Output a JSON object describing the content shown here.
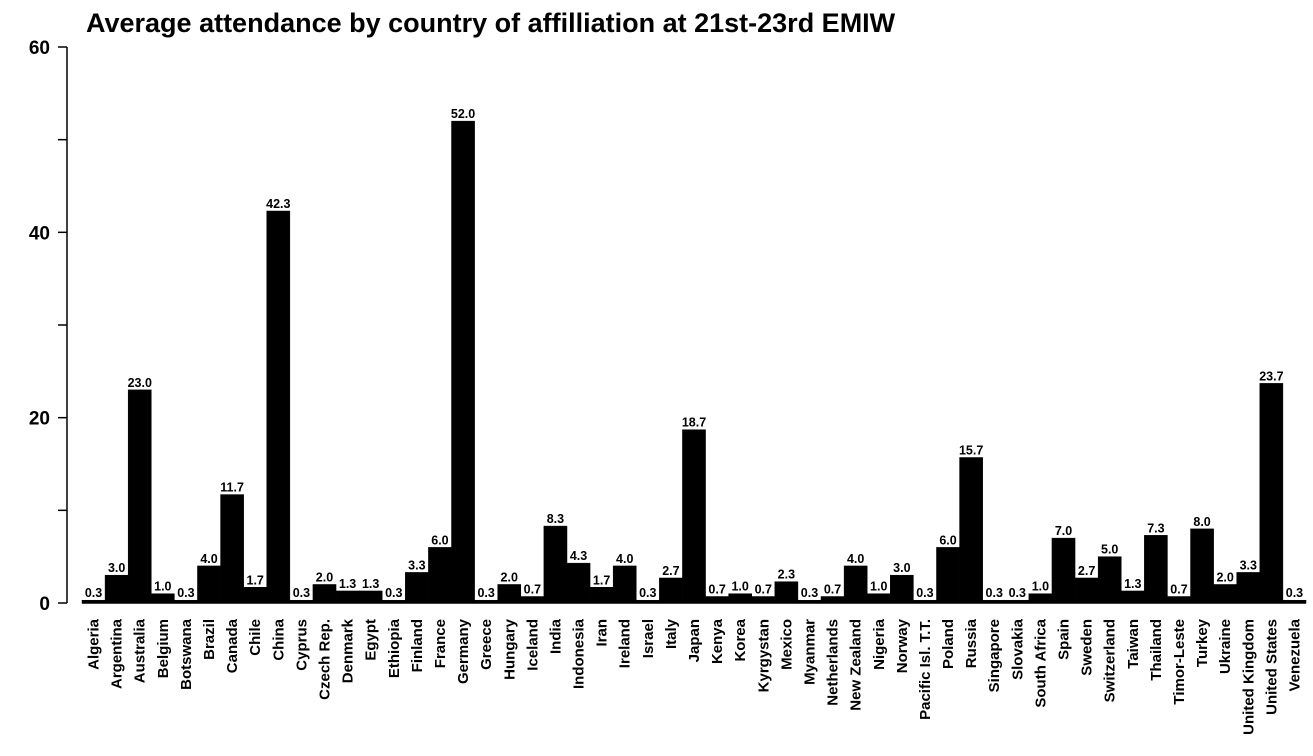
{
  "chart_data": {
    "type": "bar",
    "title": "Average attendance by country of affilliation at 21st-23rd EMIW",
    "xlabel": "",
    "ylabel": "",
    "ylim": [
      0,
      60
    ],
    "yticks": [
      0,
      20,
      40,
      60
    ],
    "grid": false,
    "legend": "none",
    "bar_color": "#000000",
    "categories": [
      "Algeria",
      "Argentina",
      "Australia",
      "Belgium",
      "Botswana",
      "Brazil",
      "Canada",
      "Chile",
      "China",
      "Cyprus",
      "Czech Rep.",
      "Denmark",
      "Egypt",
      "Ethiopia",
      "Finland",
      "France",
      "Germany",
      "Greece",
      "Hungary",
      "Iceland",
      "India",
      "Indonesia",
      "Iran",
      "Ireland",
      "Israel",
      "Italy",
      "Japan",
      "Kenya",
      "Korea",
      "Kyrgystan",
      "Mexico",
      "Myanmar",
      "Netherlands",
      "New Zealand",
      "Nigeria",
      "Norway",
      "Pacific Isl. T.T.",
      "Poland",
      "Russia",
      "Singapore",
      "Slovakia",
      "South Africa",
      "Spain",
      "Sweden",
      "Switzerland",
      "Taiwan",
      "Thailand",
      "Timor-Leste",
      "Turkey",
      "Ukraine",
      "United Kingdom",
      "United States",
      "Venezuela"
    ],
    "values": [
      0.3,
      3.0,
      23.0,
      1.0,
      0.3,
      4.0,
      11.7,
      1.7,
      42.3,
      0.3,
      2.0,
      1.3,
      1.3,
      0.3,
      3.3,
      6.0,
      52.0,
      0.3,
      2.0,
      0.7,
      8.3,
      4.3,
      1.7,
      4.0,
      0.3,
      2.7,
      18.7,
      0.7,
      1.0,
      0.7,
      2.3,
      0.3,
      0.7,
      4.0,
      1.0,
      3.0,
      0.3,
      6.0,
      15.7,
      0.3,
      0.3,
      1.0,
      7.0,
      2.7,
      5.0,
      1.3,
      7.3,
      0.7,
      8.0,
      2.0,
      3.3,
      23.7,
      0.3
    ],
    "data_labels": [
      "0.3",
      "3.0",
      "23.0",
      "1.0",
      "0.3",
      "4.0",
      "11.7",
      "1.7",
      "42.3",
      "0.3",
      "2.0",
      "1.3",
      "1.3",
      "0.3",
      "3.3",
      "6.0",
      "52.0",
      "0.3",
      "2.0",
      "0.7",
      "8.3",
      "4.3",
      "1.7",
      "4.0",
      "0.3",
      "2.7",
      "18.7",
      "0.7",
      "1.0",
      "0.7",
      "2.3",
      "0.3",
      "0.7",
      "4.0",
      "1.0",
      "3.0",
      "0.3",
      "6.0",
      "15.7",
      "0.3",
      "0.3",
      "1.0",
      "7.0",
      "2.7",
      "5.0",
      "1.3",
      "7.3",
      "0.7",
      "8.0",
      "2.0",
      "3.3",
      "23.7",
      "0.3"
    ]
  }
}
